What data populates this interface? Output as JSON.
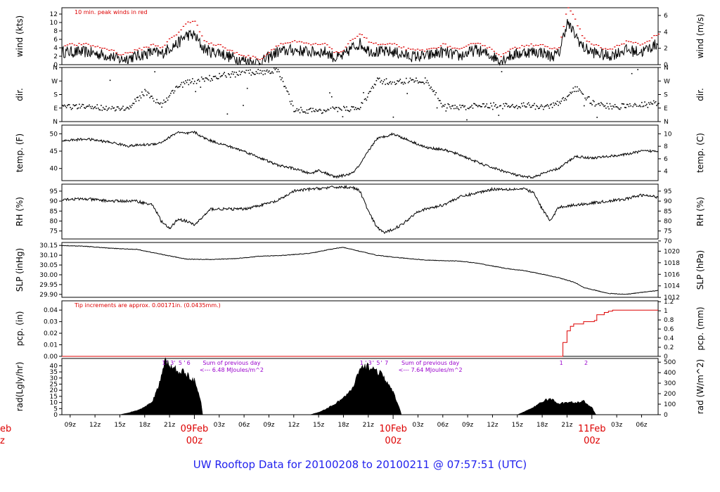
{
  "footer": "UW Rooftop Data for 20100208  to  20100211 @ 07:57:51  (UTC)",
  "colors": {
    "red": "#dd0000",
    "purple": "#9900cc",
    "footer": "#2222ee"
  },
  "chart_data": {
    "type": "line",
    "time_axis": {
      "tick_labels": [
        "09z",
        "12z",
        "15z",
        "18z",
        "21z",
        "03z",
        "06z",
        "09z",
        "12z",
        "15z",
        "18z",
        "21z",
        "03z",
        "06z",
        "09z",
        "12z",
        "15z",
        "18z",
        "21z",
        "03z",
        "06z"
      ],
      "tick_hours": [
        1,
        4,
        7,
        10,
        13,
        19,
        22,
        25,
        28,
        31,
        34,
        37,
        43,
        46,
        49,
        52,
        55,
        58,
        61,
        67,
        70
      ],
      "date_labels": [
        {
          "date": "09Feb",
          "time": "00z",
          "hour": 16
        },
        {
          "date": "10Feb",
          "time": "00z",
          "hour": 40
        },
        {
          "date": "11Feb",
          "time": "00z",
          "hour": 64
        }
      ],
      "edge_labels": [
        "eb",
        "z"
      ],
      "range_hours": [
        0,
        72
      ]
    },
    "panels": [
      {
        "id": "wind",
        "ylabel_left": "wind (kts)",
        "ylabel_right": "wind (m/s)",
        "ylim": [
          0,
          13.5
        ],
        "left_ticks": [
          0,
          2,
          4,
          6,
          8,
          10,
          12
        ],
        "right_ticks": [
          0,
          2,
          4,
          6
        ],
        "right_factor": 0.5144,
        "note": "10 min. peak winds in red",
        "key_hours": [
          0,
          3,
          6,
          7,
          9,
          11,
          12,
          13,
          14,
          15,
          16,
          17,
          18,
          19,
          20,
          22,
          24,
          26,
          28,
          30,
          32,
          33,
          34,
          35,
          36,
          37,
          38,
          40,
          42,
          44,
          46,
          48,
          50,
          52,
          53,
          54,
          56,
          58,
          59,
          60,
          61,
          62,
          63,
          64,
          66,
          68,
          70,
          72
        ],
        "key_values": [
          3,
          3,
          2,
          1.2,
          2,
          3,
          2.5,
          4,
          5,
          7,
          7,
          4,
          3,
          3,
          2,
          1,
          0.5,
          3,
          3.5,
          3,
          3,
          1.5,
          2,
          4,
          5,
          3.5,
          3,
          3,
          2,
          2,
          3,
          2,
          3.5,
          2,
          1,
          2,
          3,
          3,
          2,
          2.5,
          10,
          7,
          4,
          3,
          2,
          3.5,
          3,
          5
        ]
      },
      {
        "id": "dir",
        "ylabel_left": "dir.",
        "ylabel_right": "dir.",
        "ylim": [
          0,
          360
        ],
        "tick_labels": [
          "N",
          "E",
          "S",
          "W",
          "N"
        ],
        "tick_values": [
          0,
          90,
          180,
          270,
          360
        ],
        "key_hours": [
          0,
          2,
          4,
          6,
          8,
          10,
          12,
          14,
          16,
          18,
          20,
          22,
          24,
          26,
          28,
          30,
          32,
          34,
          36,
          38,
          40,
          42,
          44,
          46,
          48,
          50,
          52,
          54,
          56,
          58,
          60,
          62,
          64,
          66,
          68,
          70,
          72
        ],
        "key_values": [
          100,
          95,
          95,
          90,
          85,
          200,
          110,
          240,
          270,
          290,
          310,
          320,
          330,
          340,
          80,
          70,
          75,
          80,
          95,
          270,
          260,
          270,
          270,
          100,
          95,
          100,
          110,
          100,
          110,
          90,
          120,
          220,
          120,
          100,
          100,
          110,
          120
        ]
      },
      {
        "id": "temp",
        "ylabel_left": "temp. (F)",
        "ylabel_right": "temp. (C)",
        "ylim": [
          36.5,
          52.5
        ],
        "left_ticks": [
          40,
          45,
          50
        ],
        "right_ticks": [
          4,
          6,
          8,
          10
        ],
        "right_unit": "C",
        "key_hours": [
          0,
          3,
          6,
          8,
          11,
          12,
          13,
          14,
          15,
          16,
          17,
          18,
          20,
          22,
          24,
          26,
          28,
          30,
          31,
          33,
          35,
          36,
          37,
          38,
          40,
          42,
          44,
          46,
          48,
          50,
          51,
          53,
          55,
          56,
          57,
          58,
          60,
          62,
          64,
          66,
          68,
          70,
          72
        ],
        "key_values": [
          48,
          48.5,
          47.5,
          46.5,
          47,
          47.5,
          49,
          50.5,
          50,
          50.5,
          49,
          48,
          46.5,
          45,
          43,
          41,
          40,
          38.5,
          39.5,
          37.5,
          38.5,
          41,
          45,
          48.5,
          50,
          48,
          46,
          45.5,
          44,
          42,
          41,
          39.5,
          38,
          37.5,
          37.5,
          38.5,
          40,
          43.5,
          43,
          43.5,
          44,
          45,
          45
        ]
      },
      {
        "id": "rh",
        "ylabel_left": "RH (%)",
        "ylabel_right": "RH (%)",
        "ylim": [
          71,
          98.5
        ],
        "left_ticks": [
          75,
          80,
          85,
          90,
          95
        ],
        "right_ticks": [
          70,
          75,
          80,
          85,
          90,
          95
        ],
        "key_hours": [
          0,
          3,
          6,
          9,
          11,
          12,
          13,
          14,
          15,
          16,
          17,
          18,
          20,
          22,
          24,
          26,
          28,
          30,
          33,
          35,
          36,
          37,
          38,
          39,
          40,
          41,
          43,
          46,
          48,
          50,
          52,
          54,
          56,
          57,
          58,
          59,
          60,
          62,
          64,
          66,
          68,
          70,
          72
        ],
        "key_values": [
          91,
          91,
          90,
          90,
          88,
          80,
          76,
          81,
          80,
          78,
          82,
          86,
          86,
          86,
          88,
          90,
          95,
          96,
          97,
          97,
          95,
          85,
          77,
          74,
          76,
          78,
          85,
          88,
          92,
          94,
          96,
          96,
          96,
          94,
          86,
          80,
          87,
          88,
          89,
          90,
          91,
          93,
          92
        ]
      },
      {
        "id": "slp",
        "ylabel_left": "SLP (inHg)",
        "ylabel_right": "SLP (hPa)",
        "ylim": [
          29.885,
          30.165
        ],
        "left_ticks": [
          29.9,
          29.95,
          30.0,
          30.05,
          30.1,
          30.15
        ],
        "left_tick_labels": [
          "29.90",
          "29.95",
          "30.00",
          "30.05",
          "30.10",
          "30.15"
        ],
        "right_ticks": [
          1012,
          1014,
          1016,
          1018,
          1020
        ],
        "hpa_per_inhg": 33.8639,
        "key_hours": [
          0,
          3,
          6,
          9,
          12,
          15,
          18,
          21,
          24,
          27,
          30,
          33,
          34,
          36,
          38,
          40,
          44,
          48,
          50,
          52,
          54,
          56,
          58,
          60,
          62,
          63,
          64,
          66,
          68,
          70,
          72
        ],
        "key_values": [
          30.15,
          30.145,
          30.135,
          30.13,
          30.105,
          30.08,
          30.078,
          30.083,
          30.095,
          30.1,
          30.11,
          30.135,
          30.14,
          30.12,
          30.1,
          30.09,
          30.075,
          30.07,
          30.06,
          30.045,
          30.03,
          30.02,
          30.003,
          29.985,
          29.96,
          29.935,
          29.925,
          29.905,
          29.9,
          29.91,
          29.92
        ]
      },
      {
        "id": "pcp",
        "ylabel_left": "pcp. (in)",
        "ylabel_right": "pcp. (mm)",
        "ylim": [
          0,
          0.048
        ],
        "left_ticks": [
          0.0,
          0.01,
          0.02,
          0.03,
          0.04
        ],
        "left_tick_labels": [
          "0.00",
          "0.01",
          "0.02",
          "0.03",
          "0.04"
        ],
        "right_ticks": [
          0,
          0.2,
          0.4,
          0.6,
          0.8,
          1.0,
          1.2
        ],
        "right_tick_labels": [
          "0",
          "0.2",
          "0.4",
          "0.6",
          "0.8",
          "1",
          "1.2"
        ],
        "mm_per_in": 25.4,
        "note": "Tip increments are approx. 0.00171in. (0.0435mm.)",
        "step_hours": [
          0,
          60,
          60.5,
          61,
          61.4,
          61.8,
          62.1,
          62.5,
          62.9,
          63,
          63.5,
          64.3,
          64.6,
          65.5,
          66,
          66.5,
          67.3,
          72
        ],
        "step_values": [
          0,
          0,
          0.012,
          0.022,
          0.026,
          0.028,
          0.028,
          0.028,
          0.028,
          0.03,
          0.03,
          0.031,
          0.036,
          0.038,
          0.039,
          0.04,
          0.04,
          0.04
        ]
      },
      {
        "id": "rad",
        "ylabel_left": "rad(Lgly/hr)",
        "ylabel_right": "rad (W/m^2)",
        "ylim": [
          0,
          46
        ],
        "left_ticks": [
          0,
          5,
          10,
          15,
          20,
          25,
          30,
          35,
          40
        ],
        "right_ticks": [
          0,
          100,
          200,
          300,
          400,
          500
        ],
        "wm2_per_lgly_hr": 11.63,
        "notes": [
          {
            "hour": 20.5,
            "lines": [
              "Sum of previous day",
              "<--- 6.48 MJoules/m^2"
            ]
          },
          {
            "hour": 44.5,
            "lines": [
              "Sum of previous day",
              "<--- 7.64 MJoules/m^2"
            ]
          }
        ],
        "marker_hours": [
          12.3,
          13.3,
          14.3,
          15.3,
          12.7,
          13.6,
          14.8,
          36.2,
          37.2,
          38.2,
          39.2,
          36.7,
          37.6,
          38.6,
          60.3,
          63.3
        ],
        "marker_labels": [
          "1",
          "3",
          "5",
          "6",
          "'",
          "'",
          "'",
          "1",
          "3",
          "5",
          "7",
          "'",
          "'",
          "'",
          "1",
          "2"
        ],
        "key_hours": [
          0,
          7,
          8,
          9,
          10,
          11,
          11.5,
          12,
          12.5,
          13,
          13.5,
          14,
          15,
          16,
          16.8,
          17,
          30,
          31,
          32,
          33,
          34,
          35,
          35.5,
          36,
          37,
          38,
          39,
          40,
          40.8,
          41,
          55,
          56,
          57,
          58,
          59,
          60,
          61,
          62,
          63,
          64,
          64.5,
          72
        ],
        "key_values": [
          0,
          0,
          1.5,
          3.5,
          6,
          12,
          20,
          30,
          45,
          40,
          38,
          36,
          34,
          28,
          10,
          0,
          0,
          2,
          5,
          9,
          14,
          20,
          28,
          37,
          40,
          36,
          30,
          18,
          5,
          0,
          0,
          3,
          6,
          11,
          13,
          9,
          10,
          10,
          11,
          6,
          0,
          0
        ]
      }
    ]
  }
}
